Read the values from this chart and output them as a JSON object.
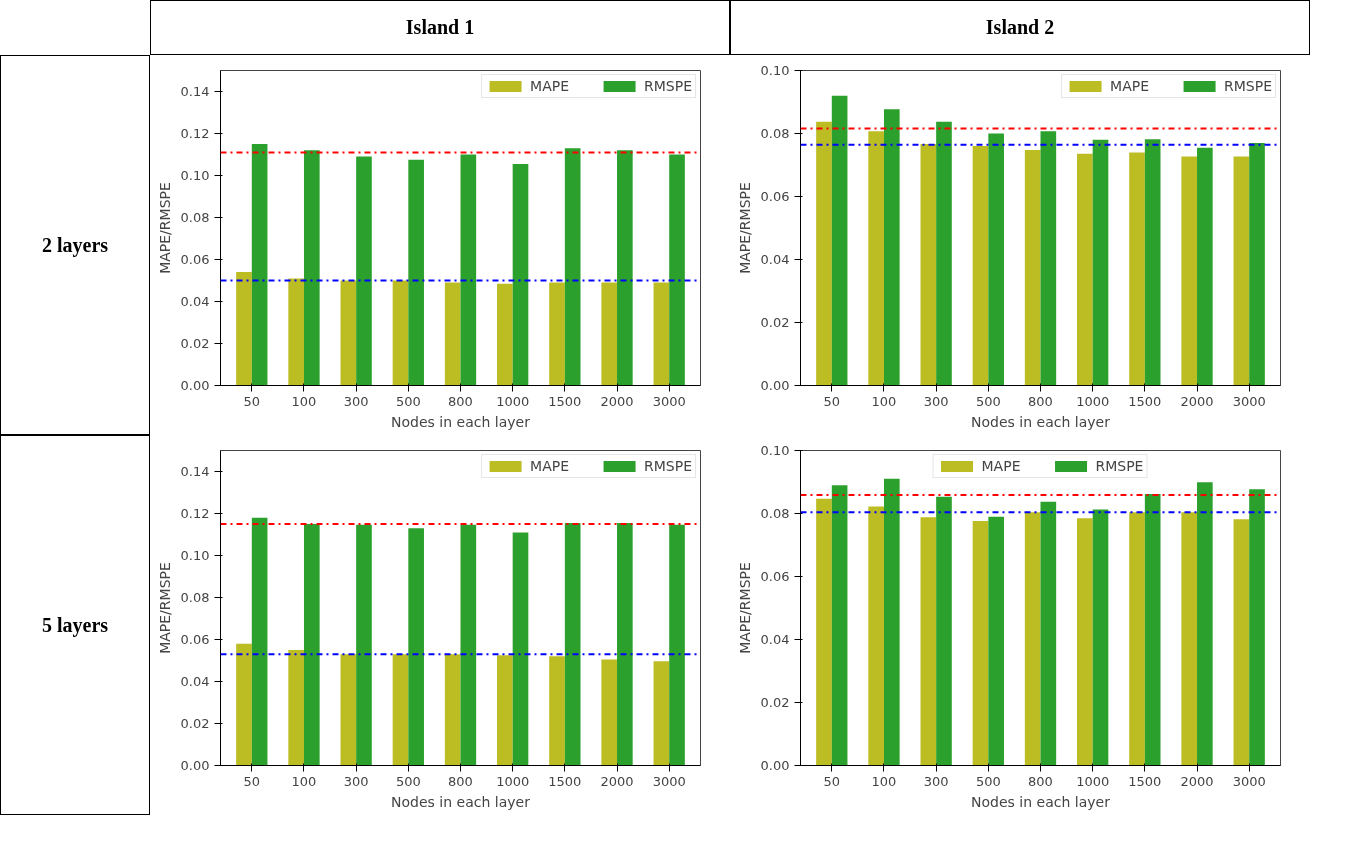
{
  "chart_data": [
    {
      "type": "bar",
      "title": "Island 1",
      "subtitle": "2 layers",
      "xlabel": "Nodes in each layer",
      "ylabel": "MAPE/RMSPE",
      "categories": [
        "50",
        "100",
        "300",
        "500",
        "800",
        "1000",
        "1500",
        "2000",
        "3000"
      ],
      "series": [
        {
          "name": "MAPE",
          "color": "#bcbd22",
          "values": [
            0.054,
            0.051,
            0.05,
            0.05,
            0.049,
            0.0485,
            0.049,
            0.049,
            0.049
          ]
        },
        {
          "name": "RMSPE",
          "color": "#2ca02c",
          "values": [
            0.115,
            0.112,
            0.109,
            0.1075,
            0.11,
            0.1055,
            0.113,
            0.112,
            0.11
          ]
        }
      ],
      "ylim": [
        0,
        0.15
      ],
      "yticks": [
        {
          "value": 0,
          "label": "0.00"
        },
        {
          "value": 0.02,
          "label": "0.02"
        },
        {
          "value": 0.04,
          "label": "0.04"
        },
        {
          "value": 0.06,
          "label": "0.06"
        },
        {
          "value": 0.08,
          "label": "0.08"
        },
        {
          "value": 0.1,
          "label": "0.10"
        },
        {
          "value": 0.12,
          "label": "0.12"
        },
        {
          "value": 0.14,
          "label": "0.14"
        }
      ],
      "ref_lines": [
        {
          "axis": "y",
          "value": 0.111,
          "color": "#ff0000",
          "line_style": "dashdot"
        },
        {
          "axis": "y",
          "value": 0.05,
          "color": "#0000ff",
          "line_style": "dashdot"
        }
      ],
      "legend": "top right",
      "grid": false
    },
    {
      "type": "bar",
      "title": "Island 2",
      "xlabel": "Nodes in each layer",
      "ylabel": "MAPE/RMSPE",
      "categories": [
        "50",
        "100",
        "300",
        "500",
        "800",
        "1000",
        "1500",
        "2000",
        "3000"
      ],
      "series": [
        {
          "name": "MAPE",
          "color": "#bcbd22",
          "values": [
            0.0837,
            0.0807,
            0.0767,
            0.076,
            0.0748,
            0.0736,
            0.074,
            0.0727,
            0.0727
          ]
        },
        {
          "name": "RMSPE",
          "color": "#2ca02c",
          "values": [
            0.092,
            0.0877,
            0.0837,
            0.08,
            0.0807,
            0.078,
            0.0782,
            0.0755,
            0.077
          ]
        }
      ],
      "ylim": [
        0,
        0.1
      ],
      "yticks": [
        {
          "value": 0,
          "label": "0.00"
        },
        {
          "value": 0.02,
          "label": "0.02"
        },
        {
          "value": 0.04,
          "label": "0.04"
        },
        {
          "value": 0.06,
          "label": "0.06"
        },
        {
          "value": 0.08,
          "label": "0.08"
        },
        {
          "value": 0.1,
          "label": "0.10"
        }
      ],
      "ref_lines": [
        {
          "axis": "y",
          "value": 0.0816,
          "color": "#ff0000",
          "line_style": "dashdot"
        },
        {
          "axis": "y",
          "value": 0.0764,
          "color": "#0000ff",
          "line_style": "dashdot"
        }
      ],
      "legend": "top right",
      "grid": false
    },
    {
      "type": "bar",
      "subtitle": "5 layers",
      "xlabel": "Nodes in each layer",
      "ylabel": "MAPE/RMSPE",
      "categories": [
        "50",
        "100",
        "300",
        "500",
        "800",
        "1000",
        "1500",
        "2000",
        "3000"
      ],
      "series": [
        {
          "name": "MAPE",
          "color": "#bcbd22",
          "values": [
            0.058,
            0.055,
            0.053,
            0.053,
            0.053,
            0.0525,
            0.052,
            0.0505,
            0.0496
          ]
        },
        {
          "name": "RMSPE",
          "color": "#2ca02c",
          "values": [
            0.118,
            0.115,
            0.1146,
            0.113,
            0.1146,
            0.111,
            0.1155,
            0.1155,
            0.1146
          ]
        }
      ],
      "ylim": [
        0,
        0.15
      ],
      "yticks": [
        {
          "value": 0,
          "label": "0.00"
        },
        {
          "value": 0.02,
          "label": "0.02"
        },
        {
          "value": 0.04,
          "label": "0.04"
        },
        {
          "value": 0.06,
          "label": "0.06"
        },
        {
          "value": 0.08,
          "label": "0.08"
        },
        {
          "value": 0.1,
          "label": "0.10"
        },
        {
          "value": 0.12,
          "label": "0.12"
        },
        {
          "value": 0.14,
          "label": "0.14"
        }
      ],
      "ref_lines": [
        {
          "axis": "y",
          "value": 0.115,
          "color": "#ff0000",
          "line_style": "dashdot"
        },
        {
          "axis": "y",
          "value": 0.053,
          "color": "#0000ff",
          "line_style": "dashdot"
        }
      ],
      "legend": "top right",
      "grid": false
    },
    {
      "type": "bar",
      "xlabel": "Nodes in each layer",
      "ylabel": "MAPE/RMSPE",
      "categories": [
        "50",
        "100",
        "300",
        "500",
        "800",
        "1000",
        "1500",
        "2000",
        "3000"
      ],
      "series": [
        {
          "name": "MAPE",
          "color": "#bcbd22",
          "values": [
            0.0847,
            0.0822,
            0.0788,
            0.0776,
            0.0804,
            0.0785,
            0.0804,
            0.0804,
            0.0782
          ]
        },
        {
          "name": "RMSPE",
          "color": "#2ca02c",
          "values": [
            0.089,
            0.091,
            0.0853,
            0.079,
            0.0837,
            0.0813,
            0.0862,
            0.0899,
            0.0877
          ]
        }
      ],
      "ylim": [
        0,
        0.1
      ],
      "yticks": [
        {
          "value": 0,
          "label": "0.00"
        },
        {
          "value": 0.02,
          "label": "0.02"
        },
        {
          "value": 0.04,
          "label": "0.04"
        },
        {
          "value": 0.06,
          "label": "0.06"
        },
        {
          "value": 0.08,
          "label": "0.08"
        },
        {
          "value": 0.1,
          "label": "0.10"
        }
      ],
      "ref_lines": [
        {
          "axis": "y",
          "value": 0.0859,
          "color": "#ff0000",
          "line_style": "dashdot"
        },
        {
          "axis": "y",
          "value": 0.0804,
          "color": "#0000ff",
          "line_style": "dashdot"
        }
      ],
      "legend": "top",
      "grid": false
    }
  ]
}
